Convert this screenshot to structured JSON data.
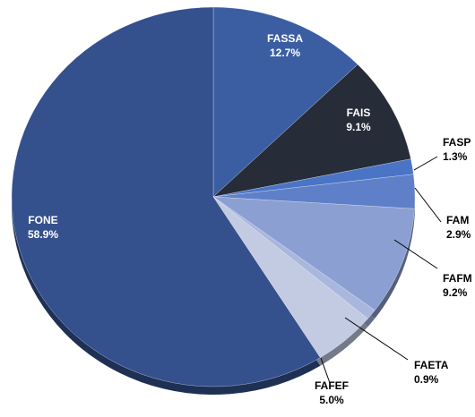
{
  "chart_data": {
    "type": "pie",
    "categories": [
      "FASSA",
      "FAIS",
      "FASP",
      "FAM",
      "FAFM",
      "FAETA",
      "FAFEF",
      "FONE"
    ],
    "values": [
      12.7,
      9.1,
      1.3,
      2.9,
      9.2,
      0.9,
      5.0,
      58.9
    ],
    "value_labels": [
      "12.7%",
      "9.1%",
      "1.3%",
      "2.9%",
      "9.2%",
      "0.9%",
      "5.0%",
      "58.9%"
    ],
    "colors": [
      "#3b5ea3",
      "#262c38",
      "#4a74c6",
      "#5f80c8",
      "#8c9fd2",
      "#a9b7de",
      "#c3cbe2",
      "#34508d"
    ]
  }
}
